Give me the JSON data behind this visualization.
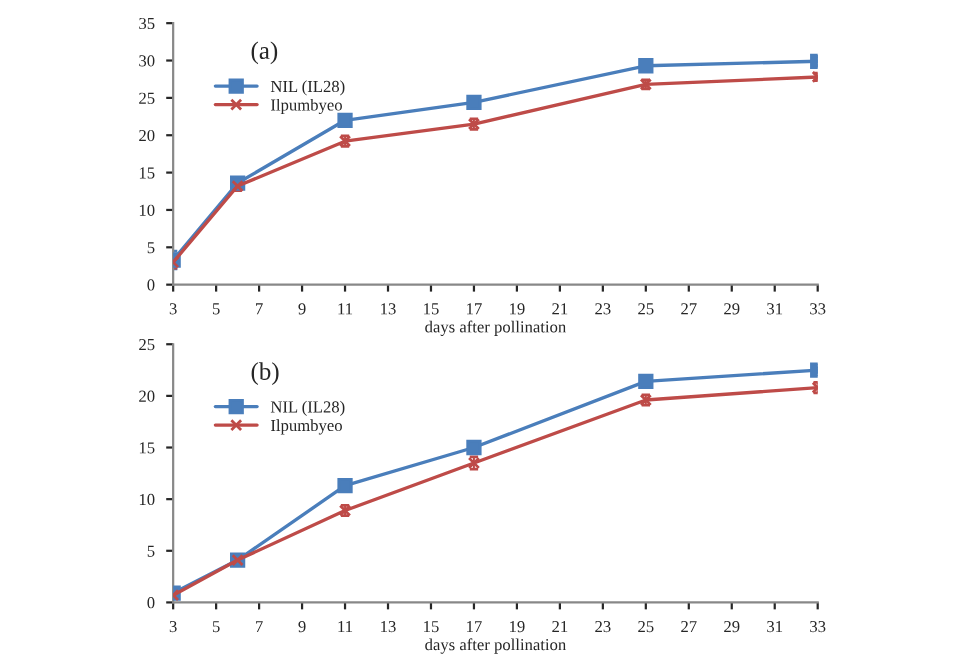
{
  "chart_data": [
    {
      "type": "line",
      "title": "(a)",
      "xlabel": "days after pollination",
      "x": [
        3,
        6,
        11,
        17,
        25,
        33
      ],
      "xlim": [
        3,
        33
      ],
      "xticks": [
        3,
        5,
        7,
        9,
        11,
        13,
        15,
        17,
        19,
        21,
        23,
        25,
        27,
        29,
        31,
        33
      ],
      "ylim": [
        0,
        35
      ],
      "yticks": [
        0,
        5,
        10,
        15,
        20,
        25,
        30,
        35
      ],
      "grid": false,
      "legend": "top left",
      "line_style": "solid",
      "series": [
        {
          "name": "NIL (IL28)",
          "color": "#4a7ebb",
          "marker": "square",
          "values": [
            3.3,
            13.6,
            22.0,
            24.4,
            29.3,
            29.9
          ],
          "errors": [
            1.2,
            0.6,
            0.7,
            0.7,
            0.6,
            0.6
          ]
        },
        {
          "name": "Ilpumbyeo",
          "color": "#be4b48",
          "marker": "cross",
          "values": [
            3.0,
            13.2,
            19.2,
            21.5,
            26.8,
            27.8
          ],
          "errors": [
            0.8,
            0.6,
            0.7,
            0.7,
            0.6,
            0.5
          ]
        }
      ]
    },
    {
      "type": "line",
      "title": "(b)",
      "xlabel": "days after pollination",
      "x": [
        3,
        6,
        11,
        17,
        25,
        33
      ],
      "xlim": [
        3,
        33
      ],
      "xticks": [
        3,
        5,
        7,
        9,
        11,
        13,
        15,
        17,
        19,
        21,
        23,
        25,
        27,
        29,
        31,
        33
      ],
      "ylim": [
        0,
        25
      ],
      "yticks": [
        0,
        5,
        10,
        15,
        20,
        25
      ],
      "grid": false,
      "legend": "top left",
      "line_style": "solid",
      "series": [
        {
          "name": "NIL (IL28)",
          "color": "#4a7ebb",
          "marker": "square",
          "values": [
            0.9,
            4.1,
            11.3,
            15.0,
            21.4,
            22.5
          ],
          "errors": [
            0.4,
            0.2,
            0.5,
            0.5,
            0.4,
            0.3
          ]
        },
        {
          "name": "Ilpumbyeo",
          "color": "#be4b48",
          "marker": "cross",
          "values": [
            0.7,
            4.1,
            8.9,
            13.5,
            19.6,
            20.8
          ],
          "errors": [
            0.3,
            0.2,
            0.5,
            0.6,
            0.5,
            0.5
          ]
        }
      ]
    }
  ]
}
